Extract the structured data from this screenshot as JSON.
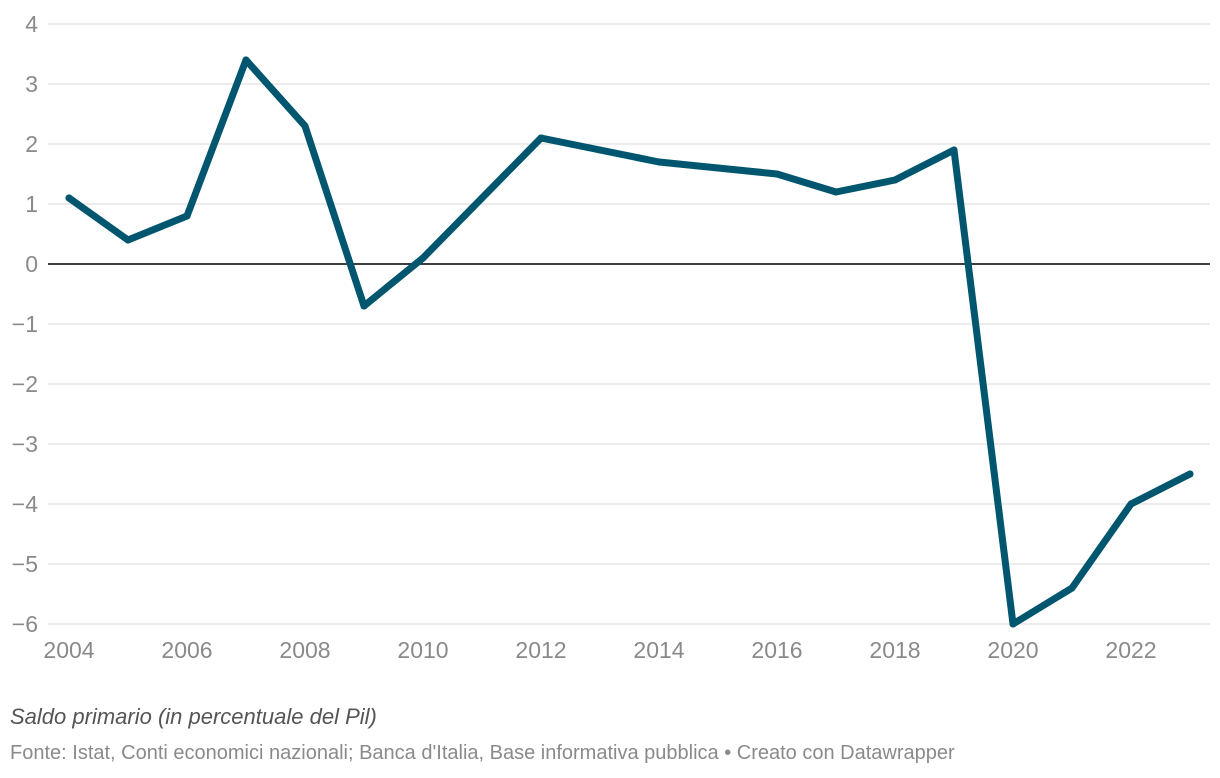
{
  "chart_data": {
    "type": "line",
    "title": "",
    "xlabel": "",
    "ylabel": "",
    "x": [
      2004,
      2005,
      2006,
      2007,
      2008,
      2009,
      2010,
      2011,
      2012,
      2013,
      2014,
      2015,
      2016,
      2017,
      2018,
      2019,
      2020,
      2021,
      2022,
      2023
    ],
    "series": [
      {
        "name": "Saldo primario",
        "color": "#00566e",
        "values": [
          1.1,
          0.4,
          0.8,
          3.4,
          2.3,
          -0.7,
          0.1,
          1.1,
          2.1,
          1.9,
          1.7,
          1.6,
          1.5,
          1.2,
          1.4,
          1.9,
          -6.0,
          -5.4,
          -4.0,
          -3.5
        ]
      }
    ],
    "xlim": [
      2004,
      2023
    ],
    "ylim": [
      -6,
      4
    ],
    "xticks": [
      "2004",
      "2006",
      "2008",
      "2010",
      "2012",
      "2014",
      "2016",
      "2018",
      "2020",
      "2022"
    ],
    "yticks": [
      "4",
      "3",
      "2",
      "1",
      "0",
      "−1",
      "−2",
      "−3",
      "−4",
      "−5",
      "−6"
    ],
    "grid": true,
    "legend": "none"
  },
  "caption": "Saldo primario (in percentuale del Pil)",
  "source": "Fonte: Istat, Conti economici nazionali; Banca d'Italia, Base informativa pubblica • Creato con Datawrapper"
}
